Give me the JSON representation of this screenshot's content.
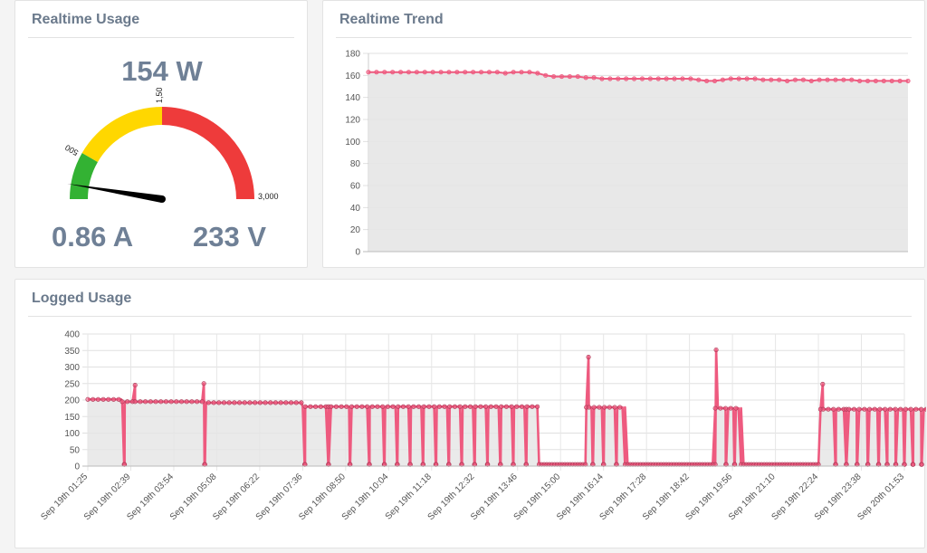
{
  "realtime_usage": {
    "title": "Realtime Usage",
    "power": "154 W",
    "current": "0.86 A",
    "voltage": "233 V",
    "gauge": {
      "min": 0,
      "max": 3000,
      "value": 154,
      "bands": [
        {
          "from": 0,
          "to": 500,
          "color": "#33b233"
        },
        {
          "from": 500,
          "to": 1500,
          "color": "#ffd700"
        },
        {
          "from": 1500,
          "to": 3000,
          "color": "#ee3b3b"
        }
      ],
      "labels": [
        "500",
        "1,500",
        "3,000"
      ]
    }
  },
  "realtime_trend": {
    "title": "Realtime Trend"
  },
  "logged_usage": {
    "title": "Logged Usage"
  },
  "chart_data": [
    {
      "type": "line",
      "title": "Realtime Trend",
      "ylim": [
        0,
        180
      ],
      "yticks": [
        "0",
        "20",
        "40",
        "60",
        "80",
        "100",
        "120",
        "140",
        "160",
        "180"
      ],
      "grid": true,
      "color": "#ee5a7f",
      "fill": "#e5e5e5",
      "values": [
        163,
        163,
        163,
        163,
        163,
        163,
        163,
        163,
        163,
        163,
        163,
        163,
        163,
        163,
        163,
        163,
        163,
        162,
        163,
        163,
        163,
        162,
        160,
        159,
        159,
        159,
        159,
        158,
        158,
        157,
        157,
        157,
        157,
        157,
        157,
        157,
        157,
        157,
        157,
        157,
        157,
        156,
        155,
        155,
        156,
        157,
        157,
        157,
        157,
        156,
        156,
        156,
        155,
        156,
        156,
        155,
        156,
        156,
        156,
        156,
        156,
        155,
        155,
        155,
        155,
        155,
        155,
        155
      ]
    },
    {
      "type": "line",
      "title": "Logged Usage",
      "ylim": [
        0,
        400
      ],
      "yticks": [
        "0",
        "50",
        "100",
        "150",
        "200",
        "250",
        "300",
        "350",
        "400"
      ],
      "grid": true,
      "color": "#ee5a7f",
      "fill": "#e5e5e5",
      "x_labels": [
        "Sep 19th 01:25",
        "Sep 19th 02:39",
        "Sep 19th 03:54",
        "Sep 19th 05:08",
        "Sep 19th 06:22",
        "Sep 19th 07:36",
        "Sep 19th 08:50",
        "Sep 19th 10:04",
        "Sep 19th 11:18",
        "Sep 19th 12:32",
        "Sep 19th 13:46",
        "Sep 19th 15:00",
        "Sep 19th 16:14",
        "Sep 19th 17:28",
        "Sep 19th 18:42",
        "Sep 19th 19:56",
        "Sep 19th 21:10",
        "Sep 19th 22:24",
        "Sep 19th 23:38",
        "Sep 20th 01:53"
      ],
      "segments": [
        {
          "from": 0.0,
          "to": 0.8,
          "level": 202,
          "spikes": []
        },
        {
          "from": 0.8,
          "to": 2.75,
          "level": 195,
          "spikes": [
            {
              "at": 1.1,
              "v": 245
            },
            {
              "at": 2.7,
              "v": 250
            }
          ]
        },
        {
          "from": 2.75,
          "to": 5.0,
          "level": 192,
          "spikes": []
        },
        {
          "from": 5.0,
          "to": 10.5,
          "level": 180,
          "spikes": []
        },
        {
          "from": 10.5,
          "to": 11.6,
          "level": 5,
          "spikes": []
        },
        {
          "from": 11.6,
          "to": 12.5,
          "level": 178,
          "spikes": [
            {
              "at": 11.65,
              "v": 330
            }
          ]
        },
        {
          "from": 12.5,
          "to": 14.6,
          "level": 5,
          "spikes": []
        },
        {
          "from": 14.6,
          "to": 15.2,
          "level": 175,
          "spikes": [
            {
              "at": 14.62,
              "v": 352
            }
          ]
        },
        {
          "from": 15.2,
          "to": 17.05,
          "level": 5,
          "spikes": []
        },
        {
          "from": 17.05,
          "to": 19.6,
          "level": 172,
          "spikes": [
            {
              "at": 17.1,
              "v": 248
            }
          ]
        }
      ],
      "dropouts": [
        0.85,
        2.72,
        5.05,
        5.6,
        6.1,
        6.55,
        6.9,
        7.2,
        7.5,
        7.8,
        8.1,
        8.4,
        8.7,
        9.0,
        9.3,
        9.6,
        9.9,
        10.2,
        11.75,
        12.0,
        12.3,
        14.85,
        15.05,
        17.4,
        17.65,
        17.9,
        18.15,
        18.4,
        18.6,
        18.8,
        19.0,
        19.2,
        19.4
      ]
    }
  ]
}
